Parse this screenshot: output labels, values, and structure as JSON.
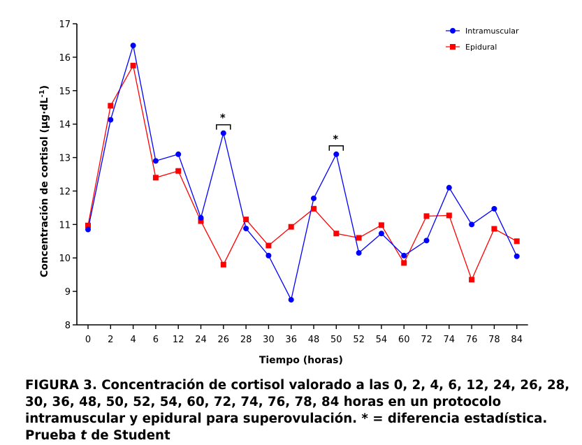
{
  "chart_data": {
    "type": "line",
    "title": "",
    "xlabel": "Tiempo (horas)",
    "ylabel": "Concentración de cortisol (µg·dL",
    "ylabel_sup": "-1",
    "ylabel_close": ")",
    "categories": [
      "0",
      "2",
      "4",
      "6",
      "12",
      "24",
      "26",
      "28",
      "30",
      "36",
      "48",
      "50",
      "52",
      "54",
      "60",
      "72",
      "74",
      "76",
      "78",
      "84"
    ],
    "ylim": [
      8,
      17
    ],
    "yticks": [
      8,
      9,
      10,
      11,
      12,
      13,
      14,
      15,
      16,
      17
    ],
    "grid": false,
    "legend_position": "top-right",
    "series": [
      {
        "name": "Intramuscular",
        "color": "#0000ff",
        "marker": "circle",
        "values": [
          10.85,
          14.13,
          16.35,
          12.9,
          13.1,
          11.2,
          13.73,
          10.88,
          10.07,
          8.75,
          11.78,
          13.1,
          10.15,
          10.73,
          10.07,
          10.52,
          12.1,
          11.0,
          11.47,
          10.05
        ]
      },
      {
        "name": "Epidural",
        "color": "#ff0000",
        "marker": "square",
        "values": [
          10.97,
          14.55,
          15.75,
          12.4,
          12.6,
          11.1,
          9.8,
          11.15,
          10.37,
          10.93,
          11.47,
          10.73,
          10.6,
          10.98,
          9.85,
          11.25,
          11.27,
          9.35,
          10.87,
          10.5
        ]
      }
    ],
    "annotations": [
      {
        "label": "*",
        "category": "26"
      },
      {
        "label": "*",
        "category": "50"
      }
    ]
  },
  "caption": {
    "part1": "FIGURA 3. Concentración de cortisol valorado a las 0, 2, 4, 6, 12, 24, 26, 28, 30, 36, 48, 50, 52, 54, 60, 72, 74, 76, 78, 84 horas en un protocolo intramuscular y epidural para superovulación. * = diferencia estadística. Prueba ",
    "italic": "t",
    "part2": " de Student"
  }
}
